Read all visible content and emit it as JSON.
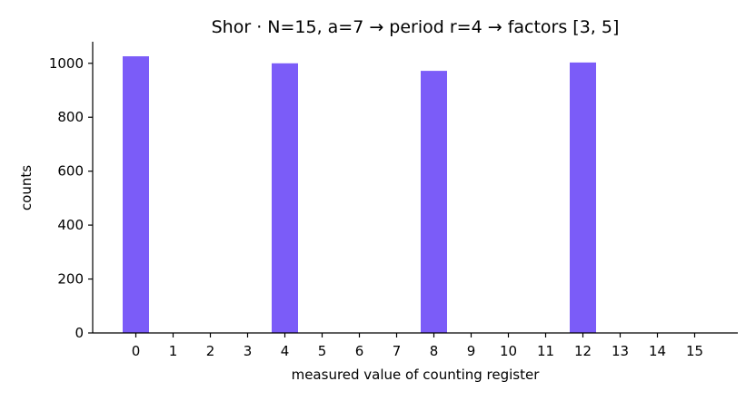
{
  "chart_data": {
    "type": "bar",
    "title": "Shor · N=15, a=7 → period r=4 → factors [3, 5]",
    "xlabel": "measured value of counting register",
    "ylabel": "counts",
    "categories": [
      "0",
      "1",
      "2",
      "3",
      "4",
      "5",
      "6",
      "7",
      "8",
      "9",
      "10",
      "11",
      "12",
      "13",
      "14",
      "15"
    ],
    "values": [
      1026,
      0,
      0,
      0,
      1000,
      0,
      0,
      0,
      972,
      0,
      0,
      0,
      1003,
      0,
      0,
      0
    ],
    "ylim": [
      0,
      1080
    ],
    "yticks": [
      0,
      200,
      400,
      600,
      800,
      1000
    ],
    "bar_color": "#7B5CF8",
    "grid": false,
    "spines": [
      "left",
      "bottom"
    ]
  }
}
